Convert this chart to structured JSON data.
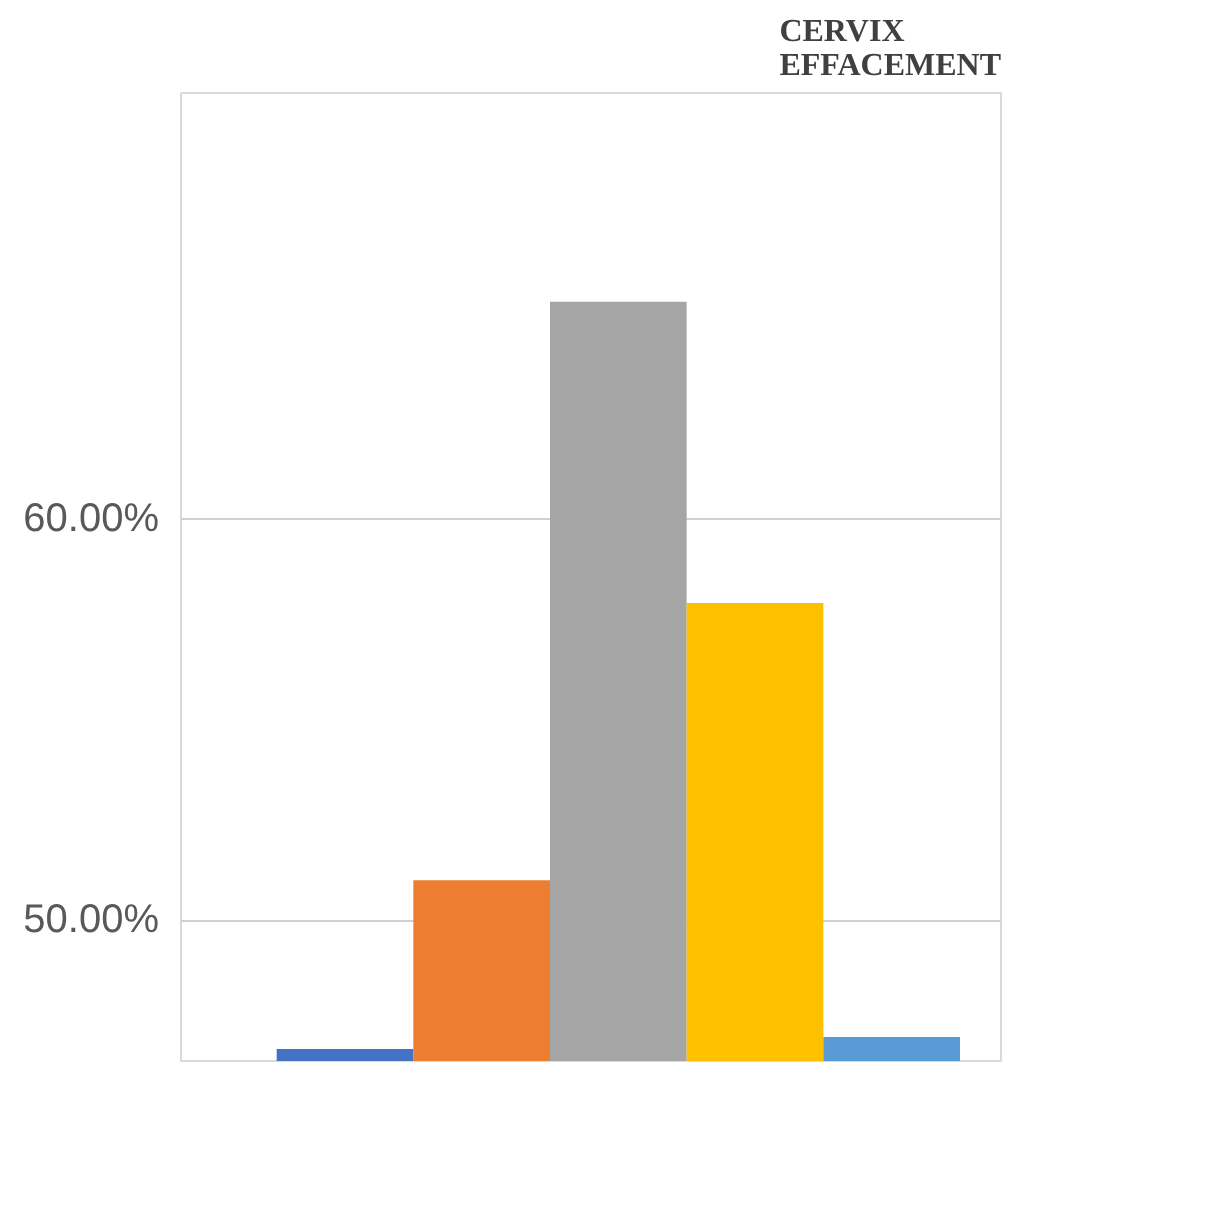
{
  "chart_data": {
    "type": "bar",
    "title": "CERVIX\nEFFACEMENT",
    "categories": [
      null,
      null,
      null,
      null,
      null
    ],
    "values": [
      46.8,
      51.0,
      65.4,
      57.9,
      47.1
    ],
    "colors": [
      "#4472c4",
      "#ed7d31",
      "#a5a5a5",
      "#ffc000",
      "#5b9bd5"
    ],
    "ylim": [
      46.5,
      70.6
    ],
    "yticks": [
      {
        "value": 50,
        "label": "50.00%"
      },
      {
        "value": 60,
        "label": "60.00%"
      }
    ],
    "grid": "y"
  }
}
